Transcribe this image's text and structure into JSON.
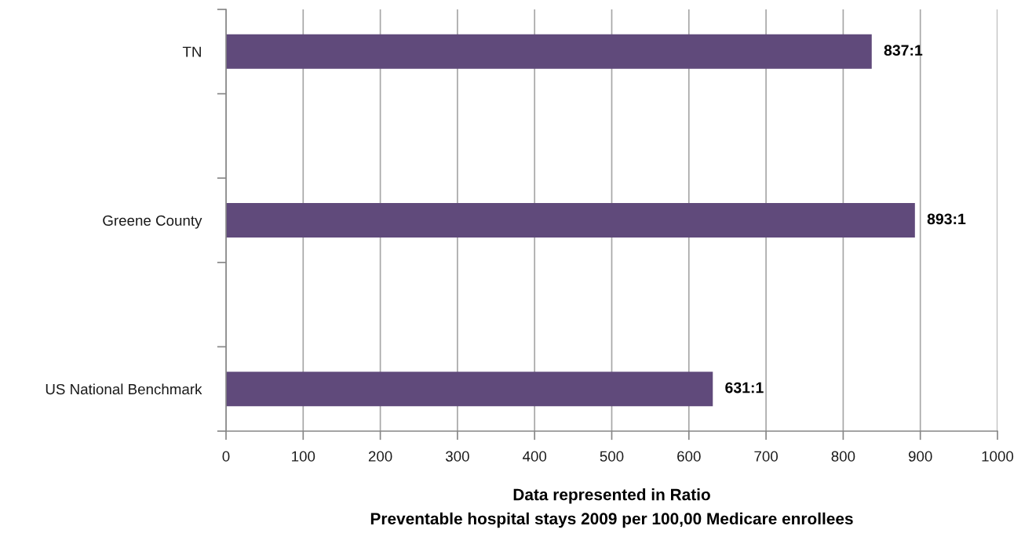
{
  "chart_data": {
    "type": "bar",
    "orientation": "horizontal",
    "xlabel": "Data represented in Ratio\nPreventable hospital stays 2009 per 100,00 Medicare enrollees",
    "categories": [
      "TN",
      null,
      "Greene County",
      null,
      "US National Benchmark"
    ],
    "values": [
      837,
      null,
      893,
      null,
      631
    ],
    "value_labels": [
      "837:1",
      null,
      "893:1",
      null,
      "631:1"
    ],
    "color": "#604a7b",
    "xlim": [
      0,
      1000
    ],
    "xticks": [
      0,
      100,
      200,
      300,
      400,
      500,
      600,
      700,
      800,
      900,
      1000
    ],
    "grid": "x"
  }
}
